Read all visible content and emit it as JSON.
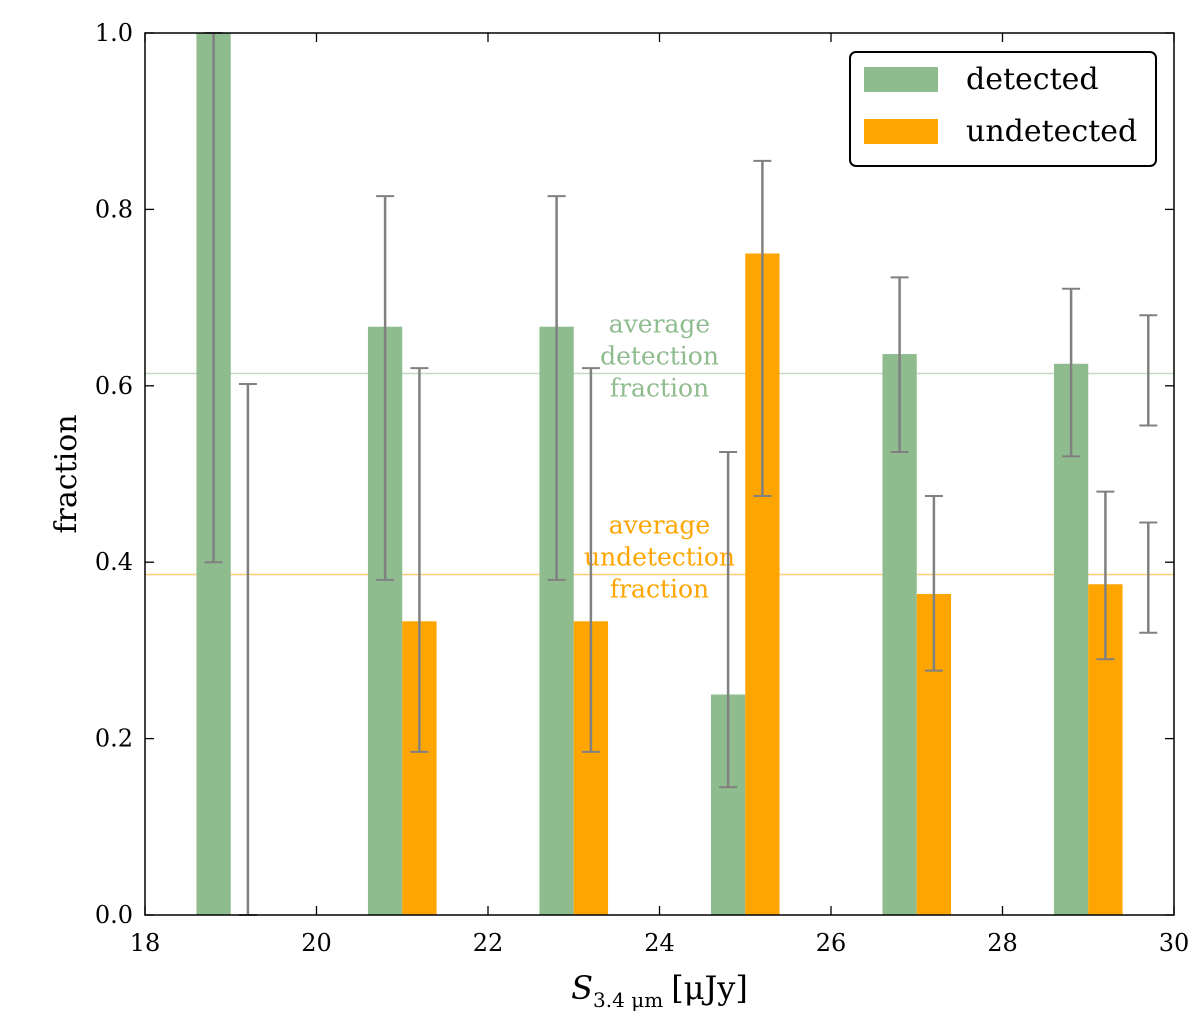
{
  "chart_data": {
    "type": "bar",
    "xlabel": "S",
    "xlabel_subscript": "3.4 μm",
    "xlabel_unit": "[μJy]",
    "ylabel": "fraction",
    "xlim": [
      18,
      30
    ],
    "ylim": [
      0.0,
      1.0
    ],
    "xticks": [
      "18",
      "20",
      "22",
      "24",
      "26",
      "28",
      "30"
    ],
    "yticks": [
      "0.0",
      "0.2",
      "0.4",
      "0.6",
      "0.8",
      "1.0"
    ],
    "x": [
      19,
      21,
      23,
      25,
      27,
      29
    ],
    "series": [
      {
        "name": "detected",
        "color": "#8fbc8f",
        "values": [
          1.0,
          0.667,
          0.667,
          0.25,
          0.636,
          0.625
        ],
        "err_low": [
          0.4,
          0.38,
          0.38,
          0.145,
          0.525,
          0.52
        ],
        "err_high": [
          1.0,
          0.815,
          0.815,
          0.525,
          0.723,
          0.71
        ]
      },
      {
        "name": "undetected",
        "color": "#ffa500",
        "values": [
          0.0,
          0.333,
          0.333,
          0.75,
          0.364,
          0.375
        ],
        "err_low": [
          0.0,
          0.185,
          0.185,
          0.475,
          0.277,
          0.29
        ],
        "err_high": [
          0.602,
          0.62,
          0.62,
          0.855,
          0.475,
          0.48
        ]
      }
    ],
    "average_lines": [
      {
        "series": "detected",
        "value": 0.614,
        "label_lines": [
          "average",
          "detection",
          "fraction"
        ],
        "color": "#8fbc8f",
        "err_low": 0.555,
        "err_high": 0.68
      },
      {
        "series": "undetected",
        "value": 0.386,
        "label_lines": [
          "average",
          "undetection",
          "fraction"
        ],
        "color": "#ffa500",
        "err_low": 0.32,
        "err_high": 0.445
      }
    ],
    "legend_position": "top-right",
    "errorbar_color": "#808080"
  }
}
